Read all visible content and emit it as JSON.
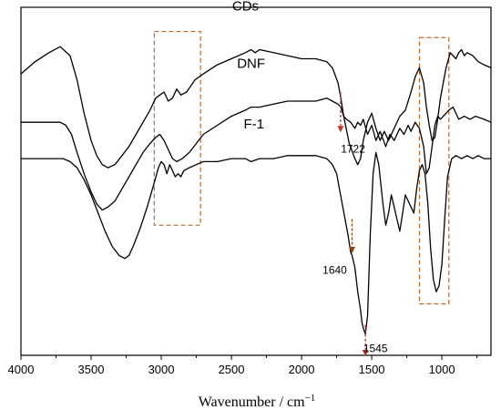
{
  "chart_data": {
    "type": "line",
    "xlabel": "Wavenumber / cm",
    "xlabel_superscript": "−1",
    "x_reversed": true,
    "xlim": [
      4000,
      650
    ],
    "x_ticks": [
      4000,
      3500,
      3000,
      2500,
      2000,
      1500,
      1000
    ],
    "y_ticks": false,
    "grid": false,
    "series": [
      {
        "name": "CDs",
        "color": "#000000",
        "x": [
          4000,
          3900,
          3800,
          3720,
          3650,
          3600,
          3550,
          3500,
          3460,
          3420,
          3380,
          3330,
          3280,
          3230,
          3180,
          3130,
          3080,
          3040,
          3010,
          2980,
          2950,
          2920,
          2890,
          2860,
          2820,
          2760,
          2700,
          2600,
          2500,
          2400,
          2360,
          2330,
          2300,
          2200,
          2100,
          2000,
          1900,
          1820,
          1780,
          1740,
          1720,
          1700,
          1660,
          1620,
          1600,
          1580,
          1560,
          1530,
          1500,
          1470,
          1440,
          1410,
          1380,
          1340,
          1300,
          1260,
          1220,
          1190,
          1160,
          1130,
          1110,
          1090,
          1070,
          1050,
          1030,
          1010,
          990,
          970,
          940,
          900,
          880,
          860,
          840,
          820,
          780,
          740,
          700,
          650
        ],
        "y": [
          88,
          92,
          95,
          97,
          94,
          86,
          75,
          66,
          61,
          58,
          57,
          58,
          61,
          64,
          68,
          72,
          76,
          80,
          81,
          82,
          79,
          80,
          83,
          81,
          82,
          86,
          88,
          91,
          93,
          95,
          96,
          95,
          96,
          95,
          94,
          93,
          93,
          92,
          90,
          85,
          80,
          74,
          65,
          60,
          58,
          60,
          66,
          72,
          75,
          70,
          66,
          69,
          66,
          70,
          74,
          76,
          82,
          87,
          90,
          85,
          77,
          71,
          66,
          67,
          73,
          80,
          85,
          90,
          95,
          93,
          95,
          96,
          94,
          95,
          94,
          92,
          91,
          90
        ]
      },
      {
        "name": "DNF",
        "color": "#000000",
        "x": [
          4000,
          3900,
          3800,
          3720,
          3680,
          3640,
          3600,
          3550,
          3500,
          3460,
          3420,
          3380,
          3330,
          3280,
          3230,
          3180,
          3130,
          3080,
          3040,
          3010,
          2980,
          2950,
          2920,
          2890,
          2850,
          2800,
          2750,
          2700,
          2600,
          2500,
          2400,
          2360,
          2300,
          2200,
          2100,
          2000,
          1900,
          1820,
          1780,
          1740,
          1720,
          1700,
          1680,
          1650,
          1620,
          1600,
          1580,
          1560,
          1530,
          1500,
          1470,
          1440,
          1400,
          1370,
          1340,
          1300,
          1270,
          1240,
          1220,
          1190,
          1160,
          1130,
          1110,
          1090,
          1070,
          1050,
          1030,
          1010,
          990,
          970,
          950,
          920,
          880,
          840,
          800,
          760,
          700,
          650
        ],
        "y": [
          72,
          72,
          72,
          72,
          71,
          68,
          62,
          55,
          49,
          45,
          43,
          44,
          46,
          50,
          54,
          58,
          62,
          65,
          67,
          68,
          66,
          63,
          60,
          59,
          60,
          62,
          65,
          68,
          71,
          74,
          76,
          77,
          77,
          78,
          79,
          79,
          79,
          80,
          79,
          78,
          77,
          74,
          73,
          72,
          70,
          72,
          71,
          73,
          68,
          71,
          66,
          69,
          64,
          68,
          66,
          70,
          68,
          71,
          69,
          72,
          70,
          64,
          55,
          57,
          64,
          71,
          74,
          73,
          74,
          75,
          76,
          77,
          73,
          74,
          73,
          74,
          73,
          72
        ]
      },
      {
        "name": "F-1",
        "color": "#000000",
        "x": [
          4000,
          3900,
          3800,
          3700,
          3650,
          3600,
          3550,
          3500,
          3450,
          3400,
          3350,
          3300,
          3260,
          3230,
          3200,
          3150,
          3100,
          3050,
          3020,
          3000,
          2980,
          2960,
          2940,
          2920,
          2900,
          2880,
          2860,
          2840,
          2800,
          2750,
          2700,
          2600,
          2500,
          2400,
          2360,
          2300,
          2200,
          2100,
          2000,
          1900,
          1820,
          1780,
          1750,
          1730,
          1710,
          1690,
          1670,
          1650,
          1640,
          1620,
          1600,
          1580,
          1570,
          1560,
          1545,
          1530,
          1510,
          1490,
          1470,
          1450,
          1420,
          1400,
          1380,
          1360,
          1340,
          1320,
          1300,
          1280,
          1260,
          1240,
          1220,
          1200,
          1180,
          1160,
          1140,
          1120,
          1100,
          1080,
          1060,
          1040,
          1020,
          1000,
          980,
          960,
          930,
          900,
          860,
          820,
          780,
          740,
          700,
          650
        ],
        "y": [
          60,
          60,
          60,
          60,
          59,
          57,
          53,
          48,
          42,
          36,
          31,
          28,
          27,
          28,
          31,
          37,
          44,
          52,
          57,
          59,
          58,
          55,
          58,
          56,
          54,
          55,
          54,
          56,
          57,
          58,
          59,
          59,
          60,
          60,
          59,
          60,
          60,
          61,
          61,
          61,
          60,
          58,
          55,
          50,
          45,
          40,
          35,
          29,
          28,
          24,
          16,
          10,
          6,
          4,
          2,
          8,
          35,
          55,
          62,
          58,
          45,
          38,
          42,
          48,
          44,
          40,
          36,
          42,
          48,
          46,
          44,
          42,
          50,
          56,
          58,
          55,
          45,
          30,
          20,
          16,
          18,
          25,
          40,
          54,
          60,
          61,
          60,
          61,
          60,
          61,
          60,
          60
        ]
      }
    ],
    "series_labels": [
      {
        "text": "CDs",
        "x": 2400,
        "y": 109
      },
      {
        "text": "DNF",
        "x": 2360,
        "y": 90
      },
      {
        "text": "F-1",
        "x": 2340,
        "y": 70
      }
    ],
    "annotations": [
      {
        "text": "1722",
        "arrow_x": 1722,
        "label_x": 1720,
        "label_y": 62,
        "arrow_from_y": 82,
        "arrow_to_y": 69,
        "color": "#c0392b"
      },
      {
        "text": "1640",
        "arrow_x": 1640,
        "label_x": 1850,
        "label_y": 22,
        "arrow_from_y": 40,
        "arrow_to_y": 29,
        "color": "#8b4513"
      },
      {
        "text": "1545",
        "arrow_x": 1545,
        "label_x": 1560,
        "label_y": -4,
        "arrow_from_y": 5,
        "arrow_to_y": -5,
        "color": "#c0392b"
      }
    ],
    "highlight_boxes": [
      {
        "x0": 3050,
        "x1": 2720,
        "y0": 38,
        "y1": 102,
        "color": "#b8692c"
      },
      {
        "x0": 1160,
        "x1": 950,
        "y0": 12,
        "y1": 100,
        "color": "#b8692c"
      }
    ]
  }
}
